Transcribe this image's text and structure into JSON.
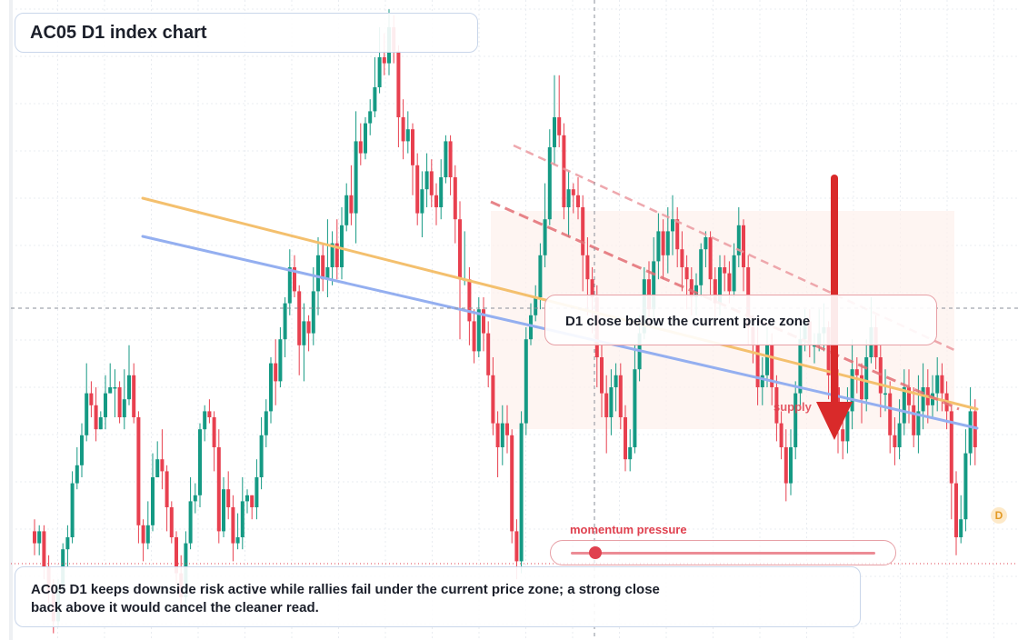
{
  "title": "AC05 D1 index chart",
  "annotations": {
    "zone_label": "D1 close below the current price zone",
    "supply_label": "supply",
    "momentum_label": "momentum pressure",
    "summary": "AC05 D1 keeps downside risk active while rallies fail under the current price zone; a strong close back above it would cancel the cleaner read.",
    "timeframe_badge": "D"
  },
  "momentum": {
    "level": 0.08
  },
  "colors": {
    "bull": "#159a84",
    "bear": "#e8404f",
    "trend_orange": "#f4c06e",
    "trend_blue": "#94aff0",
    "signal_red": "#d92a2a",
    "zone_fill": "#fdf1ec",
    "badge": "#e39a25"
  },
  "chart_data": {
    "type": "candlestick",
    "title": "AC05 D1 index chart",
    "ylim": [
      0,
      100
    ],
    "grid": true,
    "x_count": 200,
    "candles": [
      [
        0,
        16,
        14,
        18,
        12
      ],
      [
        1,
        14,
        16,
        17,
        12
      ],
      [
        2,
        16,
        10,
        17,
        8
      ],
      [
        3,
        10,
        6,
        12,
        4
      ],
      [
        4,
        6,
        1,
        8,
        -1
      ],
      [
        5,
        1,
        7,
        8,
        0
      ],
      [
        6,
        7,
        13,
        14,
        6
      ],
      [
        7,
        13,
        15,
        17,
        10
      ],
      [
        8,
        15,
        24,
        26,
        14
      ],
      [
        9,
        24,
        27,
        30,
        23
      ],
      [
        10,
        27,
        32,
        34,
        25
      ],
      [
        11,
        32,
        39,
        44,
        31
      ],
      [
        12,
        39,
        37,
        41,
        35
      ],
      [
        13,
        37,
        33,
        40,
        31
      ],
      [
        14,
        33,
        35,
        36,
        33
      ],
      [
        15,
        35,
        39,
        42,
        33
      ],
      [
        16,
        39,
        40,
        44,
        39
      ],
      [
        17,
        40,
        40,
        43,
        35
      ],
      [
        18,
        40,
        35,
        41,
        34
      ],
      [
        19,
        35,
        38,
        43,
        33
      ],
      [
        20,
        38,
        42,
        47,
        37
      ],
      [
        21,
        42,
        35,
        44,
        34
      ],
      [
        22,
        35,
        17,
        36,
        14
      ],
      [
        23,
        17,
        14,
        18,
        11
      ],
      [
        24,
        14,
        17,
        21,
        13
      ],
      [
        25,
        17,
        25,
        29,
        16
      ],
      [
        26,
        25,
        28,
        31,
        25
      ],
      [
        27,
        28,
        26,
        33,
        23
      ],
      [
        28,
        26,
        20,
        27,
        16
      ],
      [
        29,
        20,
        15,
        21,
        14
      ],
      [
        30,
        15,
        9,
        16,
        7
      ],
      [
        31,
        9,
        5,
        12,
        3
      ],
      [
        32,
        5,
        14,
        16,
        4
      ],
      [
        33,
        14,
        21,
        25,
        13
      ],
      [
        34,
        21,
        22,
        24,
        19
      ],
      [
        35,
        22,
        33,
        34,
        20
      ],
      [
        36,
        33,
        36,
        37,
        31
      ],
      [
        37,
        36,
        35,
        38,
        34
      ],
      [
        38,
        35,
        30,
        36,
        26
      ],
      [
        39,
        30,
        16,
        33,
        14
      ],
      [
        40,
        16,
        23,
        25,
        15
      ],
      [
        41,
        23,
        20,
        26,
        18
      ],
      [
        42,
        20,
        14,
        22,
        11
      ],
      [
        43,
        14,
        15,
        19,
        13
      ],
      [
        44,
        15,
        21,
        25,
        13
      ],
      [
        45,
        21,
        22,
        23,
        19
      ],
      [
        46,
        22,
        20,
        22,
        18
      ],
      [
        47,
        20,
        25,
        28,
        18
      ],
      [
        48,
        25,
        32,
        35,
        23
      ],
      [
        49,
        32,
        36,
        38,
        30
      ],
      [
        50,
        36,
        44,
        45,
        34
      ],
      [
        51,
        44,
        41,
        48,
        37
      ],
      [
        52,
        41,
        48,
        50,
        40
      ],
      [
        53,
        48,
        54,
        55,
        45
      ],
      [
        54,
        54,
        60,
        63,
        52
      ],
      [
        55,
        60,
        56,
        62,
        55
      ],
      [
        56,
        56,
        47,
        57,
        42
      ],
      [
        57,
        47,
        51,
        54,
        41
      ],
      [
        58,
        51,
        49,
        52,
        46
      ],
      [
        59,
        49,
        56,
        60,
        47
      ],
      [
        60,
        56,
        62,
        65,
        52
      ],
      [
        61,
        62,
        58,
        64,
        56
      ],
      [
        62,
        58,
        60,
        68,
        55
      ],
      [
        63,
        60,
        64,
        66,
        57
      ],
      [
        64,
        64,
        60,
        68,
        58
      ],
      [
        65,
        60,
        67,
        70,
        58
      ],
      [
        66,
        67,
        72,
        74,
        66
      ],
      [
        67,
        72,
        69,
        77,
        67
      ],
      [
        68,
        69,
        81,
        86,
        64
      ],
      [
        69,
        81,
        79,
        84,
        77
      ],
      [
        70,
        79,
        84,
        85,
        78
      ],
      [
        71,
        84,
        86,
        88,
        82
      ],
      [
        72,
        86,
        90,
        95,
        85
      ],
      [
        73,
        90,
        95,
        100,
        89
      ],
      [
        74,
        95,
        94,
        99,
        92
      ],
      [
        75,
        94,
        100,
        103,
        92
      ],
      [
        76,
        100,
        96,
        102,
        94
      ],
      [
        77,
        96,
        85,
        97,
        80
      ],
      [
        78,
        85,
        81,
        88,
        78
      ],
      [
        79,
        81,
        83,
        86,
        79
      ],
      [
        80,
        83,
        77,
        84,
        72
      ],
      [
        81,
        77,
        69,
        79,
        67
      ],
      [
        82,
        69,
        73,
        76,
        65
      ],
      [
        83,
        73,
        76,
        79,
        70
      ],
      [
        84,
        76,
        72,
        78,
        70
      ],
      [
        85,
        72,
        70,
        74,
        67
      ],
      [
        86,
        70,
        75,
        78,
        68
      ],
      [
        87,
        75,
        81,
        82,
        74
      ],
      [
        88,
        81,
        75,
        82,
        72
      ],
      [
        89,
        75,
        68,
        77,
        64
      ],
      [
        90,
        68,
        58,
        71,
        48
      ],
      [
        91,
        58,
        58,
        66,
        57
      ],
      [
        92,
        58,
        51,
        60,
        47
      ],
      [
        93,
        51,
        46,
        53,
        44
      ],
      [
        94,
        46,
        53,
        55,
        45
      ],
      [
        95,
        53,
        49,
        55,
        46
      ],
      [
        96,
        49,
        42,
        51,
        40
      ],
      [
        97,
        42,
        34,
        45,
        32
      ],
      [
        98,
        34,
        30,
        36,
        25
      ],
      [
        99,
        30,
        34,
        37,
        27
      ],
      [
        100,
        34,
        32,
        37,
        29
      ],
      [
        101,
        32,
        16,
        33,
        14
      ],
      [
        102,
        16,
        11,
        18,
        8
      ],
      [
        103,
        11,
        34,
        36,
        9
      ],
      [
        104,
        34,
        48,
        50,
        32
      ],
      [
        105,
        48,
        52,
        54,
        47
      ],
      [
        106,
        52,
        55,
        57,
        51
      ],
      [
        107,
        55,
        62,
        64,
        53
      ],
      [
        108,
        62,
        68,
        74,
        60
      ],
      [
        109,
        68,
        80,
        83,
        67
      ],
      [
        110,
        80,
        85,
        92,
        77
      ],
      [
        111,
        85,
        82,
        92,
        80
      ],
      [
        112,
        82,
        70,
        84,
        68
      ],
      [
        113,
        70,
        73,
        76,
        65
      ],
      [
        114,
        73,
        72,
        74,
        69
      ],
      [
        115,
        72,
        70,
        75,
        68
      ],
      [
        116,
        70,
        62,
        72,
        56
      ],
      [
        117,
        62,
        58,
        65,
        52
      ],
      [
        118,
        58,
        55,
        60,
        49
      ],
      [
        119,
        55,
        45,
        57,
        40
      ],
      [
        120,
        45,
        39,
        47,
        35
      ],
      [
        121,
        39,
        35,
        42,
        29
      ],
      [
        122,
        35,
        40,
        43,
        32
      ],
      [
        123,
        40,
        42,
        44,
        36
      ],
      [
        124,
        42,
        35,
        44,
        33
      ],
      [
        125,
        35,
        28,
        37,
        26
      ],
      [
        126,
        28,
        30,
        33,
        26
      ],
      [
        127,
        30,
        43,
        47,
        29
      ],
      [
        128,
        43,
        49,
        52,
        41
      ],
      [
        129,
        49,
        58,
        60,
        48
      ],
      [
        130,
        58,
        53,
        61,
        50
      ],
      [
        131,
        53,
        61,
        65,
        51
      ],
      [
        132,
        61,
        66,
        69,
        58
      ],
      [
        133,
        66,
        62,
        68,
        58
      ],
      [
        134,
        62,
        66,
        70,
        59
      ],
      [
        135,
        66,
        68,
        72,
        62
      ],
      [
        136,
        68,
        63,
        70,
        60
      ],
      [
        137,
        63,
        60,
        66,
        56
      ],
      [
        138,
        60,
        58,
        62,
        53
      ],
      [
        139,
        58,
        55,
        60,
        52
      ],
      [
        140,
        55,
        57,
        59,
        52
      ],
      [
        141,
        57,
        63,
        64,
        55
      ],
      [
        142,
        63,
        65,
        66,
        60
      ],
      [
        143,
        65,
        58,
        66,
        55
      ],
      [
        144,
        58,
        54,
        60,
        50
      ],
      [
        145,
        54,
        60,
        62,
        52
      ],
      [
        146,
        60,
        59,
        62,
        56
      ],
      [
        147,
        59,
        56,
        61,
        54
      ],
      [
        148,
        56,
        62,
        64,
        55
      ],
      [
        149,
        62,
        67,
        70,
        60
      ],
      [
        150,
        67,
        60,
        68,
        56
      ],
      [
        151,
        60,
        50,
        62,
        47
      ],
      [
        152,
        50,
        47,
        52,
        44
      ],
      [
        153,
        47,
        40,
        50,
        37
      ],
      [
        154,
        40,
        42,
        45,
        37
      ],
      [
        155,
        42,
        47,
        50,
        40
      ],
      [
        156,
        47,
        40,
        49,
        37
      ],
      [
        157,
        40,
        34,
        42,
        31
      ],
      [
        158,
        34,
        30,
        36,
        28
      ],
      [
        159,
        30,
        24,
        33,
        21
      ],
      [
        160,
        24,
        30,
        33,
        22
      ],
      [
        161,
        30,
        39,
        41,
        28
      ],
      [
        162,
        39,
        48,
        50,
        37
      ],
      [
        163,
        48,
        51,
        53,
        46
      ],
      [
        164,
        51,
        47,
        53,
        45
      ],
      [
        165,
        47,
        47,
        49,
        44
      ],
      [
        166,
        47,
        49,
        53,
        46
      ],
      [
        167,
        49,
        50,
        54,
        46
      ],
      [
        168,
        50,
        42,
        51,
        38
      ],
      [
        169,
        42,
        40,
        44,
        36
      ],
      [
        170,
        40,
        33,
        43,
        29
      ],
      [
        171,
        33,
        31,
        36,
        28
      ],
      [
        172,
        31,
        36,
        40,
        29
      ],
      [
        173,
        36,
        43,
        48,
        33
      ],
      [
        174,
        43,
        42,
        45,
        39
      ],
      [
        175,
        42,
        38,
        44,
        34
      ],
      [
        176,
        38,
        45,
        48,
        36
      ],
      [
        177,
        45,
        50,
        55,
        44
      ],
      [
        178,
        50,
        45,
        52,
        43
      ],
      [
        179,
        45,
        39,
        47,
        35
      ],
      [
        180,
        39,
        39,
        43,
        36
      ],
      [
        181,
        39,
        32,
        41,
        29
      ],
      [
        182,
        32,
        30,
        35,
        27
      ],
      [
        183,
        30,
        34,
        38,
        28
      ],
      [
        184,
        34,
        40,
        43,
        32
      ],
      [
        185,
        40,
        37,
        43,
        34
      ],
      [
        186,
        37,
        32,
        40,
        30
      ],
      [
        187,
        32,
        36,
        42,
        29
      ],
      [
        188,
        36,
        40,
        44,
        33
      ],
      [
        189,
        40,
        37,
        43,
        34
      ],
      [
        190,
        37,
        39,
        42,
        35
      ],
      [
        191,
        39,
        42,
        45,
        36
      ],
      [
        192,
        42,
        39,
        44,
        36
      ],
      [
        193,
        39,
        36,
        41,
        33
      ],
      [
        194,
        36,
        24,
        37,
        18
      ],
      [
        195,
        24,
        15,
        26,
        12
      ],
      [
        196,
        15,
        18,
        22,
        14
      ],
      [
        197,
        18,
        29,
        33,
        16
      ],
      [
        198,
        29,
        36,
        40,
        27
      ],
      [
        199,
        36,
        30,
        38,
        27
      ]
    ]
  }
}
